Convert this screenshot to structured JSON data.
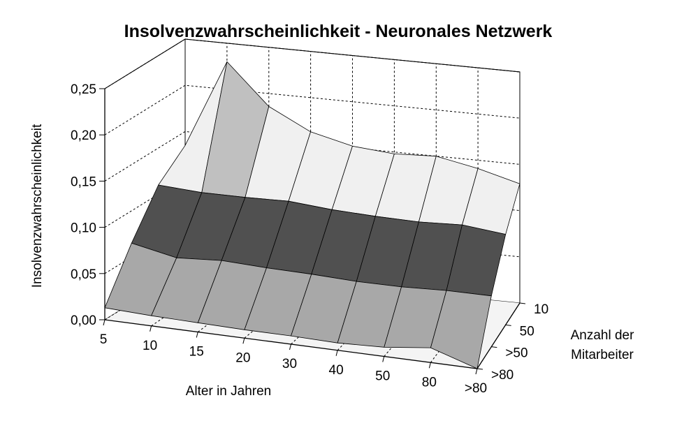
{
  "chart_data": {
    "type": "surface",
    "title": "Insolvenzwahrscheinlichkeit - Neuronales Netzwerk",
    "xlabel": "Alter in Jahren",
    "ylabel": "Insolvenzwahrscheinlichkeit",
    "zlabel_line1": "Anzahl der",
    "zlabel_line2": "Mitarbeiter",
    "x_categories": [
      "5",
      "10",
      "15",
      "20",
      "30",
      "40",
      "50",
      "80",
      ">80"
    ],
    "depth_categories": [
      ">80",
      ">50",
      "50",
      "10"
    ],
    "z_ticks": [
      "0,00",
      "0,05",
      "0,10",
      "0,15",
      "0,20",
      "0,25"
    ],
    "zlim": [
      0,
      0.25
    ],
    "band_colors": [
      "#a8a8a8",
      "#505050",
      "#f0f0f0",
      "#c0c0c0"
    ],
    "series": [
      {
        "name": ">80",
        "values": [
          0.013,
          0.011,
          0.01,
          0.009,
          0.009,
          0.008,
          0.01,
          0.016,
          0.0
        ]
      },
      {
        "name": ">50",
        "values": [
          0.065,
          0.055,
          0.058,
          0.056,
          0.055,
          0.053,
          0.053,
          0.055,
          0.055
        ]
      },
      {
        "name": "50",
        "values": [
          0.11,
          0.107,
          0.107,
          0.108,
          0.104,
          0.102,
          0.101,
          0.103,
          0.098
        ]
      },
      {
        "name": "10",
        "values": [
          0.135,
          0.23,
          0.186,
          0.163,
          0.152,
          0.148,
          0.15,
          0.141,
          0.129
        ]
      }
    ]
  }
}
